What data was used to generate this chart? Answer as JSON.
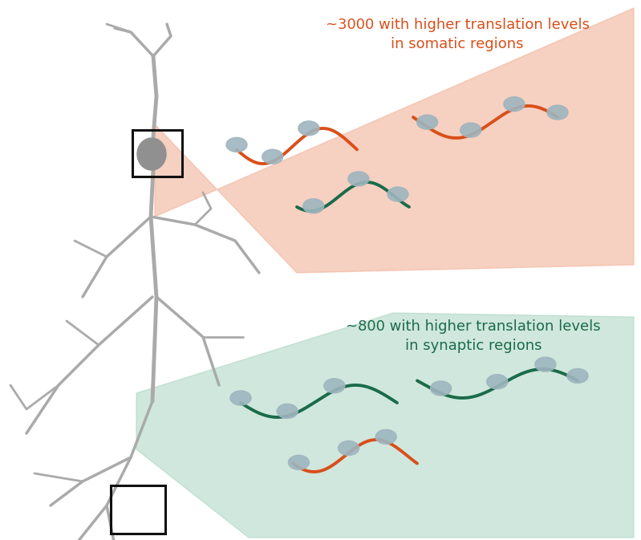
{
  "bg_color": "#ffffff",
  "neuron_fill": "#909090",
  "dendrite_color": "#aaaaaa",
  "box_color": "#111111",
  "orange_color": "#d94f1a",
  "green_color": "#1a6b4a",
  "blob_color": "#9eb5be",
  "somatic_bg": "#f2b8a0",
  "synaptic_bg": "#a8d4c0",
  "somatic_text_color": "#d94f1a",
  "synaptic_text_color": "#1a6b4a",
  "text_somatic": "~3000 with higher translation levels\nin somatic regions",
  "text_synaptic": "~800 with higher translation levels\nin synaptic regions",
  "title_fontsize": 13
}
